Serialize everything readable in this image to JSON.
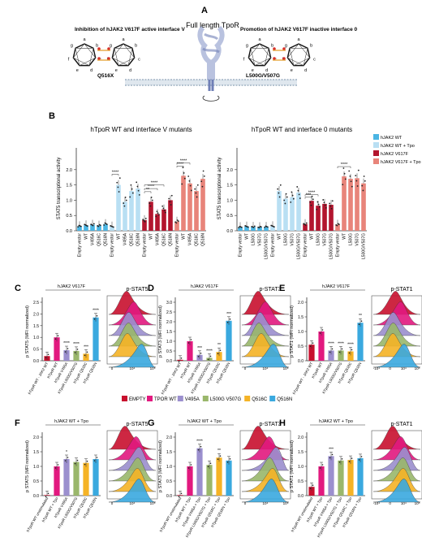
{
  "panel_a": {
    "letter": "A",
    "title": "Full length TpoR",
    "left_label": "Inhibition of hJAK2 V617F active interface V",
    "left_mutant": "Q516X",
    "right_label": "Promotion of hJAK2 V617F inactive interface 0",
    "right_mutant": "L500G/V507G",
    "helix_letters": [
      "a",
      "b",
      "c",
      "d",
      "e",
      "f",
      "g"
    ]
  },
  "panel_b": {
    "letter": "B",
    "legend": [
      {
        "label": "hJAK2 WT",
        "color": "#4bb5e3"
      },
      {
        "label": "hJAK2 WT + Tpo",
        "color": "#b9dff3"
      },
      {
        "label": "hJAK2 V617F",
        "color": "#b3152e"
      },
      {
        "label": "hJAK2 V617F + Tpo",
        "color": "#e8847a"
      }
    ]
  },
  "row2_legend": [
    {
      "label": "EMPTY",
      "color": "#c8102e"
    },
    {
      "label": "TPOR WT",
      "color": "#e2197f"
    },
    {
      "label": "V495A",
      "color": "#9b8fce"
    },
    {
      "label": "L500G V507G",
      "color": "#9ab76b"
    },
    {
      "label": "Q516C",
      "color": "#f5b326"
    },
    {
      "label": "Q516N",
      "color": "#3aa9df"
    }
  ],
  "colors": {
    "wt": "#4bb5e3",
    "wt_tpo": "#b9dff3",
    "vf": "#b3152e",
    "vf_tpo": "#e8847a",
    "empty": "#c8102e",
    "tpor_wt": "#e2197f",
    "v495a": "#9b8fce",
    "l500g": "#9ab76b",
    "q516c": "#f5b326",
    "q516n": "#3aa9df"
  },
  "chart_data": [
    {
      "id": "B1",
      "type": "bar",
      "title": "hTpoR WT and interface V mutants",
      "ylabel": "STAT5 transcriptional activity",
      "ylim": [
        0,
        2.5
      ],
      "yticks": [
        0.0,
        0.5,
        1.0,
        1.5,
        2.0
      ],
      "categories": [
        "Empty vector",
        "WT",
        "V495A",
        "Q516C",
        "Q516N",
        "Empty vector",
        "WT",
        "V495A",
        "Q516C",
        "Q516N",
        "Empty vector",
        "WT",
        "V495A",
        "Q516C",
        "Q516N",
        "Empty vector",
        "WT",
        "V495A",
        "Q516C",
        "Q516N"
      ],
      "groups": [
        "wt",
        "wt_tpo",
        "vf",
        "vf_tpo"
      ],
      "values": [
        0.15,
        0.18,
        0.2,
        0.17,
        0.22,
        0.14,
        1.5,
        0.95,
        1.3,
        1.38,
        0.35,
        0.95,
        0.55,
        0.7,
        1.0,
        0.3,
        1.8,
        1.55,
        1.3,
        1.7
      ],
      "significance": [
        "****",
        "**",
        "****",
        "****",
        "****",
        "****"
      ]
    },
    {
      "id": "B2",
      "type": "bar",
      "title": "hTpoR WT and interface 0 mutants",
      "ylabel": "STAT5 transcriptional activity",
      "ylim": [
        0,
        2.5
      ],
      "yticks": [
        0.0,
        0.5,
        1.0,
        1.5,
        2.0
      ],
      "categories": [
        "Empty vector",
        "WT",
        "L500G",
        "V507G",
        "L500G/V507G",
        "Empty vector",
        "WT",
        "L500G",
        "V507G",
        "L500G/V507G",
        "Empty vector",
        "WT",
        "L500G",
        "V507G",
        "L500G/V507G",
        "Empty vector",
        "WT",
        "L500G",
        "V507G",
        "L500G/V507G"
      ],
      "groups": [
        "wt",
        "wt_tpo",
        "vf",
        "vf_tpo"
      ],
      "values": [
        0.12,
        0.14,
        0.13,
        0.12,
        0.13,
        0.15,
        1.3,
        1.05,
        1.1,
        1.25,
        0.22,
        0.98,
        0.82,
        0.88,
        0.85,
        0.2,
        1.78,
        1.7,
        1.72,
        1.55
      ],
      "significance": [
        "***",
        "****",
        "****"
      ]
    },
    {
      "id": "C",
      "letter": "C",
      "type": "bar",
      "title": "hJAK2 V617F",
      "hist_title": "p-STAT5",
      "ylabel": "p STAT5 (MFI normalized)",
      "ylim": [
        0,
        2.5
      ],
      "yticks": [
        0.0,
        0.5,
        1.0,
        1.5,
        2.0,
        2.5
      ],
      "categories": [
        "hTpoR WT - JAK2 WT",
        "hTpoR WT",
        "hTpoR V495A",
        "hTpoR L500G/V507G",
        "hTpoR Q516C",
        "hTpoR Q516N"
      ],
      "color_keys": [
        "empty",
        "tpor_wt",
        "v495a",
        "l500g",
        "q516c",
        "q516n"
      ],
      "values": [
        0.2,
        1.0,
        0.45,
        0.42,
        0.3,
        1.85
      ],
      "significance": [
        "",
        "",
        "****",
        "****",
        "***",
        "****"
      ],
      "hist_xticks": [
        "0",
        "10^4",
        "10^5"
      ]
    },
    {
      "id": "D",
      "letter": "D",
      "type": "bar",
      "title": "hJAK2 V617F",
      "hist_title": "p-STAT3",
      "ylabel": "p STAT3 (MFI normalized)",
      "ylim": [
        0,
        3.0
      ],
      "yticks": [
        0.0,
        0.5,
        1.0,
        1.5,
        2.0,
        2.5,
        3.0
      ],
      "categories": [
        "hTpoR WT - JAK2 WT",
        "hTpoR WT",
        "hTpoR V495A",
        "hTpoR L500G/V507G",
        "hTpoR Q516C",
        "hTpoR Q516N"
      ],
      "color_keys": [
        "empty",
        "tpor_wt",
        "v495a",
        "l500g",
        "q516c",
        "q516n"
      ],
      "values": [
        0.05,
        1.0,
        0.3,
        0.15,
        0.45,
        2.05
      ],
      "significance": [
        "",
        "",
        "***",
        "****",
        "**",
        "***"
      ],
      "hist_xticks": [
        "0",
        "10^4",
        "10^5"
      ]
    },
    {
      "id": "E",
      "letter": "E",
      "type": "bar",
      "title": "hJAK2 V617F",
      "hist_title": "p-STAT1",
      "ylabel": "p STAT1 (MFI normalized)",
      "ylim": [
        0,
        2.0
      ],
      "yticks": [
        0.0,
        0.5,
        1.0,
        1.5,
        2.0
      ],
      "categories": [
        "hTpoR WT - JAK2 WT",
        "hTpoR WT",
        "hTpoR V495A",
        "hTpoR L500G/V507G",
        "hTpoR Q516C",
        "hTpoR Q516N"
      ],
      "color_keys": [
        "empty",
        "tpor_wt",
        "v495a",
        "l500g",
        "q516c",
        "q516n"
      ],
      "values": [
        0.55,
        1.0,
        0.35,
        0.35,
        0.32,
        1.3
      ],
      "significance": [
        "",
        "",
        "****",
        "****",
        "****",
        "**"
      ],
      "hist_xticks": [
        "-10^4",
        "0",
        "10^4",
        "10^5"
      ]
    },
    {
      "id": "F",
      "letter": "F",
      "type": "bar",
      "title": "hJAK2 WT + Tpo",
      "hist_title": "p-STAT5",
      "ylabel": "p STAT5 (MFI normalized)",
      "ylim": [
        0,
        2.0
      ],
      "yticks": [
        0.0,
        0.5,
        1.0,
        1.5,
        2.0
      ],
      "categories": [
        "hTpoR WT unstimulated",
        "hTpoR WT + Tpo",
        "hTpoR V495A",
        "hTpoR L500G/V507G",
        "hTpoR Q516C",
        "hTpoR Q516N"
      ],
      "color_keys": [
        "empty",
        "tpor_wt",
        "v495a",
        "l500g",
        "q516c",
        "q516n"
      ],
      "values": [
        0.02,
        1.0,
        1.25,
        1.15,
        1.12,
        1.25
      ],
      "significance": [
        "",
        "",
        "*",
        "",
        "",
        ""
      ],
      "hist_xticks": [
        "0",
        "10^4",
        "10^5"
      ]
    },
    {
      "id": "G",
      "letter": "G",
      "type": "bar",
      "title": "hJAK2 WT + Tpo",
      "hist_title": "p-STAT3",
      "ylabel": "p STAT3 (MFI normalized)",
      "ylim": [
        0,
        2.0
      ],
      "yticks": [
        0.0,
        0.5,
        1.0,
        1.5,
        2.0
      ],
      "categories": [
        "hTpoR WT unstimulated",
        "hTpoR WT + Tpo",
        "hTpoR V495A + Tpo",
        "hTpoR L500G/V507G + Tpo",
        "hTpoR Q516C + Tpo",
        "hTpoR Q516N + Tpo"
      ],
      "color_keys": [
        "empty",
        "tpor_wt",
        "v495a",
        "l500g",
        "q516c",
        "q516n"
      ],
      "values": [
        0.02,
        1.0,
        1.62,
        1.05,
        1.3,
        1.2
      ],
      "significance": [
        "",
        "",
        "****",
        "",
        "**",
        ""
      ],
      "hist_xticks": [
        "0",
        "10^4",
        "10^5"
      ]
    },
    {
      "id": "H",
      "letter": "H",
      "type": "bar",
      "title": "hJAK2 WT + Tpo",
      "hist_title": "p-STAT1",
      "ylabel": "p STAT1 (MFI normalized)",
      "ylim": [
        0,
        2.0
      ],
      "yticks": [
        0.0,
        0.5,
        1.0,
        1.5,
        2.0
      ],
      "categories": [
        "hTpoR WT unstimulated",
        "hTpoR WT + Tpo",
        "hTpoR V495A + Tpo",
        "hTpoR L500G/V507G + Tpo",
        "hTpoR Q516C + Tpo",
        "hTpoR Q516N + Tpo"
      ],
      "color_keys": [
        "empty",
        "tpor_wt",
        "v495a",
        "l500g",
        "q516c",
        "q516n"
      ],
      "values": [
        0.3,
        1.0,
        1.35,
        1.2,
        1.22,
        1.28
      ],
      "significance": [
        "",
        "",
        "***",
        "",
        "",
        ""
      ],
      "hist_xticks": [
        "-10^4",
        "0",
        "10^4",
        "10^5"
      ]
    }
  ]
}
